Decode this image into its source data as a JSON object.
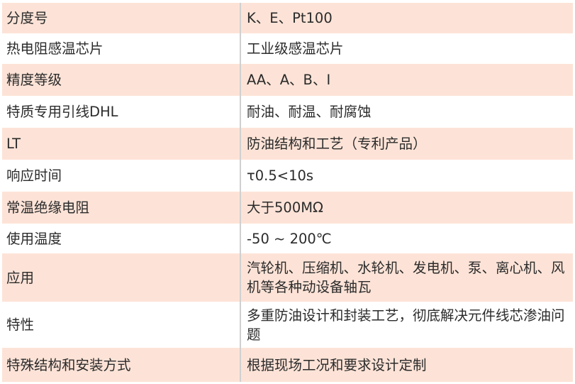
{
  "colors": {
    "band": "#fde3d7",
    "divider": "#d0d0d0",
    "text": "#2b2b2b"
  },
  "rows": [
    {
      "label": "分度号",
      "value": "K、E、Pt100"
    },
    {
      "label": "热电阻感温芯片",
      "value": "工业级感温芯片"
    },
    {
      "label": "精度等级",
      "value": "AA、A、B、I"
    },
    {
      "label": "特质专用引线DHL",
      "value": "耐油、耐温、耐腐蚀"
    },
    {
      "label": "LT",
      "value": "防油结构和工艺（专利产品）"
    },
    {
      "label": "响应时间",
      "value": "τ0.5<10s"
    },
    {
      "label": "常温绝缘电阻",
      "value": "大于500MΩ"
    },
    {
      "label": "使用温度",
      "value": "-50 ~ 200℃"
    },
    {
      "label": "应用",
      "value": "汽轮机、压缩机、水轮机、发电机、泵、离心机、风机等各种动设备轴瓦"
    },
    {
      "label": "特性",
      "value": "多重防油设计和封装工艺，彻底解决元件线芯渗油问题"
    },
    {
      "label": "特殊结构和安装方式",
      "value": "根据现场工况和要求设计定制"
    }
  ]
}
